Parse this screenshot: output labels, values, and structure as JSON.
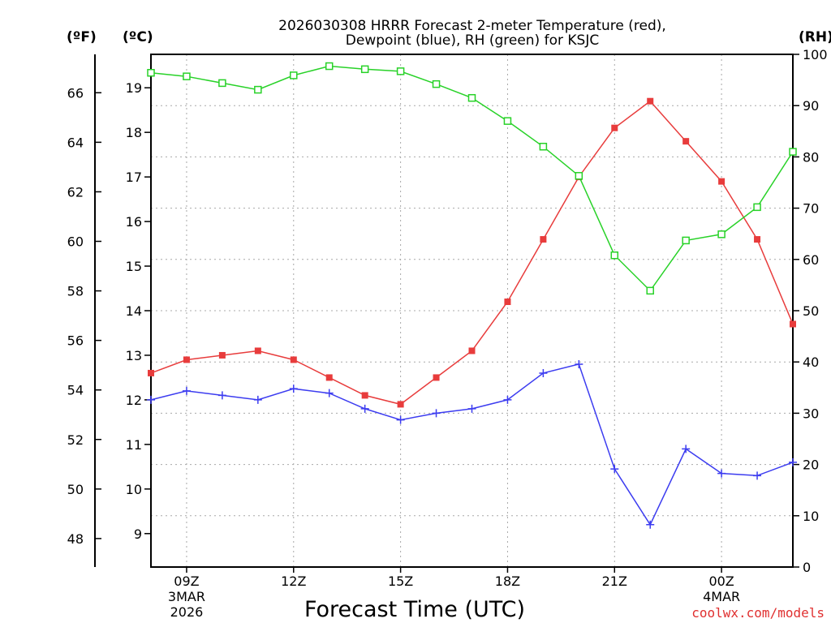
{
  "chart_data": {
    "type": "line",
    "title_line1": "2026030308 HRRR Forecast 2-meter Temperature (red),",
    "title_line2": "Dewpoint (blue), RH (green) for KSJC",
    "xlabel": "Forecast Time (UTC)",
    "credit": "coolwx.com/models",
    "unit_f": "(ºF)",
    "unit_c": "(ºC)",
    "unit_rh": "(RH)",
    "hours": [
      8,
      9,
      10,
      11,
      12,
      13,
      14,
      15,
      16,
      17,
      18,
      19,
      20,
      21,
      22,
      23,
      24,
      25,
      26
    ],
    "x_ticks": [
      {
        "hour": 9,
        "label": "09Z",
        "sub1": "3MAR",
        "sub2": "2026"
      },
      {
        "hour": 12,
        "label": "12Z",
        "sub1": "",
        "sub2": ""
      },
      {
        "hour": 15,
        "label": "15Z",
        "sub1": "",
        "sub2": ""
      },
      {
        "hour": 18,
        "label": "18Z",
        "sub1": "",
        "sub2": ""
      },
      {
        "hour": 21,
        "label": "21Z",
        "sub1": "",
        "sub2": ""
      },
      {
        "hour": 24,
        "label": "00Z",
        "sub1": "4MAR",
        "sub2": ""
      }
    ],
    "xlim": [
      8,
      26
    ],
    "celsius_lim": [
      8.25,
      19.75
    ],
    "celsius_ticks": [
      9,
      10,
      11,
      12,
      13,
      14,
      15,
      16,
      17,
      18,
      19
    ],
    "fahrenheit_ticks": [
      48,
      50,
      52,
      54,
      56,
      58,
      60,
      62,
      64,
      66
    ],
    "rh_lim": [
      0,
      100
    ],
    "rh_ticks": [
      0,
      10,
      20,
      30,
      40,
      50,
      60,
      70,
      80,
      90,
      100
    ],
    "series": [
      {
        "name": "Temperature",
        "axis": "celsius",
        "color": "#e83c3c",
        "marker": "filled-square",
        "values": [
          12.6,
          12.9,
          13.0,
          13.1,
          12.9,
          12.5,
          12.1,
          11.9,
          12.5,
          13.1,
          14.2,
          15.6,
          17.0,
          18.1,
          18.7,
          17.8,
          16.9,
          15.6,
          13.7
        ]
      },
      {
        "name": "Dewpoint",
        "axis": "celsius",
        "color": "#3c3cf0",
        "marker": "plus",
        "values": [
          12.0,
          12.2,
          12.1,
          12.0,
          12.25,
          12.15,
          11.8,
          11.55,
          11.7,
          11.8,
          12.0,
          12.6,
          12.8,
          10.45,
          9.2,
          10.9,
          10.35,
          10.3,
          10.6
        ]
      },
      {
        "name": "RH",
        "axis": "rh",
        "color": "#28d228",
        "marker": "open-square",
        "values": [
          96.4,
          95.7,
          94.4,
          93.1,
          95.9,
          97.7,
          97.1,
          96.7,
          94.2,
          91.5,
          87.0,
          82.0,
          76.3,
          60.8,
          53.9,
          63.7,
          64.9,
          70.2,
          81.0
        ]
      }
    ]
  }
}
